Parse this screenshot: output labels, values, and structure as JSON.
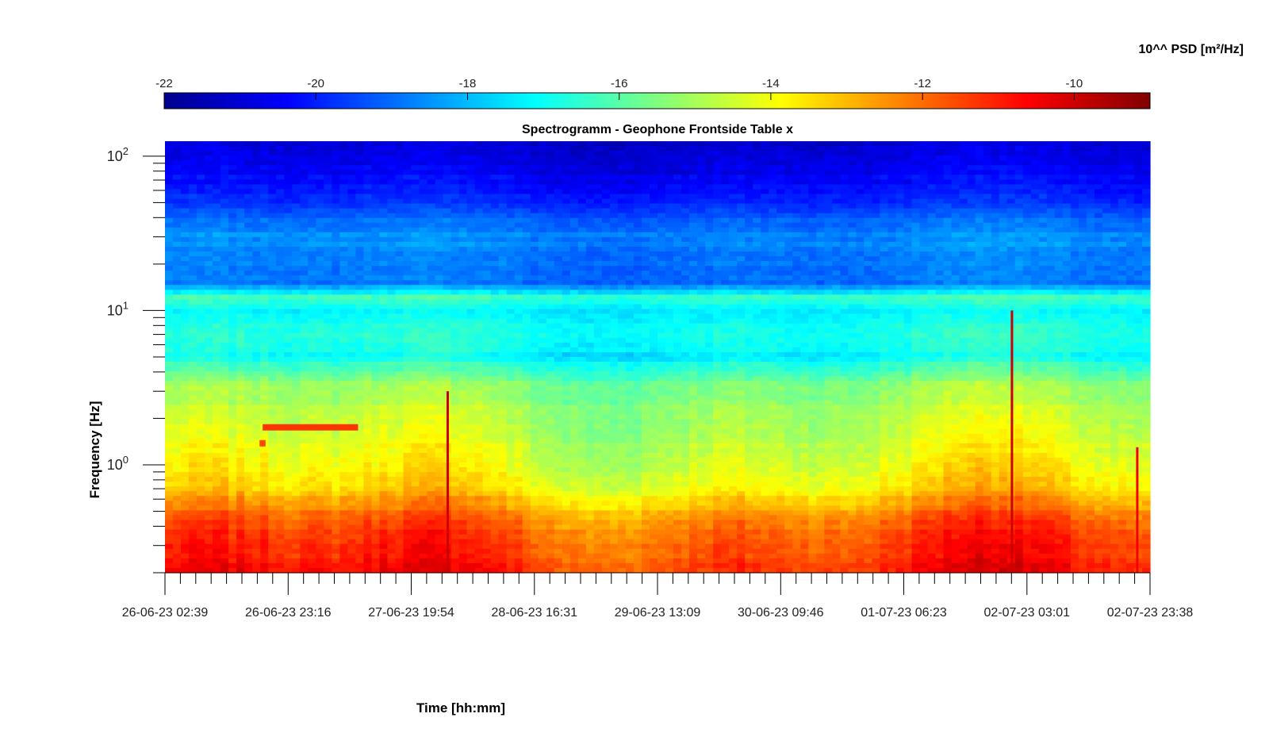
{
  "chart_data": {
    "type": "heatmap",
    "title": "Spectrogramm - Geophone Frontside Table x",
    "xlabel": "Time [hh:mm]",
    "ylabel": "Frequency [Hz]",
    "x_scale": "time",
    "x_range": [
      "26-06-23 02:39",
      "02-07-23 23:38"
    ],
    "x_ticks": [
      "26-06-23 02:39",
      "26-06-23 23:16",
      "27-06-23 19:54",
      "28-06-23 16:31",
      "29-06-23 13:09",
      "30-06-23 09:46",
      "01-07-23 06:23",
      "02-07-23 03:01",
      "02-07-23 23:38"
    ],
    "y_scale": "log",
    "y_range": [
      0.2,
      125
    ],
    "y_ticks": [
      {
        "base": "10",
        "exp": "0"
      },
      {
        "base": "10",
        "exp": "1"
      },
      {
        "base": "10",
        "exp": "2"
      }
    ],
    "colorbar": {
      "label": "10^^ PSD [m²/Hz]",
      "range": [
        -22,
        -9
      ],
      "ticks": [
        "-22",
        "-20",
        "-18",
        "-16",
        "-14",
        "-12",
        "-10"
      ],
      "colormap": "jet"
    },
    "background_profile": [
      {
        "freq": 0.2,
        "log_psd": -11.0
      },
      {
        "freq": 0.3,
        "log_psd": -11.5
      },
      {
        "freq": 0.45,
        "log_psd": -12.0
      },
      {
        "freq": 0.55,
        "log_psd": -12.8
      },
      {
        "freq": 0.7,
        "log_psd": -13.6
      },
      {
        "freq": 1.0,
        "log_psd": -14.2
      },
      {
        "freq": 2.0,
        "log_psd": -14.8
      },
      {
        "freq": 3.5,
        "log_psd": -15.5
      },
      {
        "freq": 5.0,
        "log_psd": -17.2
      },
      {
        "freq": 7.0,
        "log_psd": -16.8
      },
      {
        "freq": 10.0,
        "log_psd": -17.3
      },
      {
        "freq": 12.0,
        "log_psd": -16.2
      },
      {
        "freq": 15.0,
        "log_psd": -19.0
      },
      {
        "freq": 30.0,
        "log_psd": -18.6
      },
      {
        "freq": 50.0,
        "log_psd": -19.8
      },
      {
        "freq": 80.0,
        "log_psd": -20.6
      },
      {
        "freq": 125.0,
        "log_psd": -21.0
      }
    ],
    "features": [
      {
        "type": "narrowband_line",
        "start": "26-06-23 19:00",
        "end": "27-06-23 11:00",
        "freq": 1.75,
        "log_psd": -11.3
      },
      {
        "type": "narrowband_line",
        "start": "26-06-23 18:30",
        "end": "26-06-23 19:30",
        "freq": 1.38,
        "log_psd": -11.5
      },
      {
        "type": "broadband_spike",
        "time": "28-06-23 02:00",
        "freq_range": [
          0.2,
          3.0
        ],
        "log_psd": -10.0
      },
      {
        "type": "broadband_spike",
        "time": "02-07-23 00:30",
        "freq_range": [
          0.2,
          10.0
        ],
        "log_psd": -10.0
      },
      {
        "type": "broadband_spike",
        "time": "02-07-23 21:30",
        "freq_range": [
          0.2,
          1.3
        ],
        "log_psd": -10.5
      }
    ],
    "grid": false
  }
}
